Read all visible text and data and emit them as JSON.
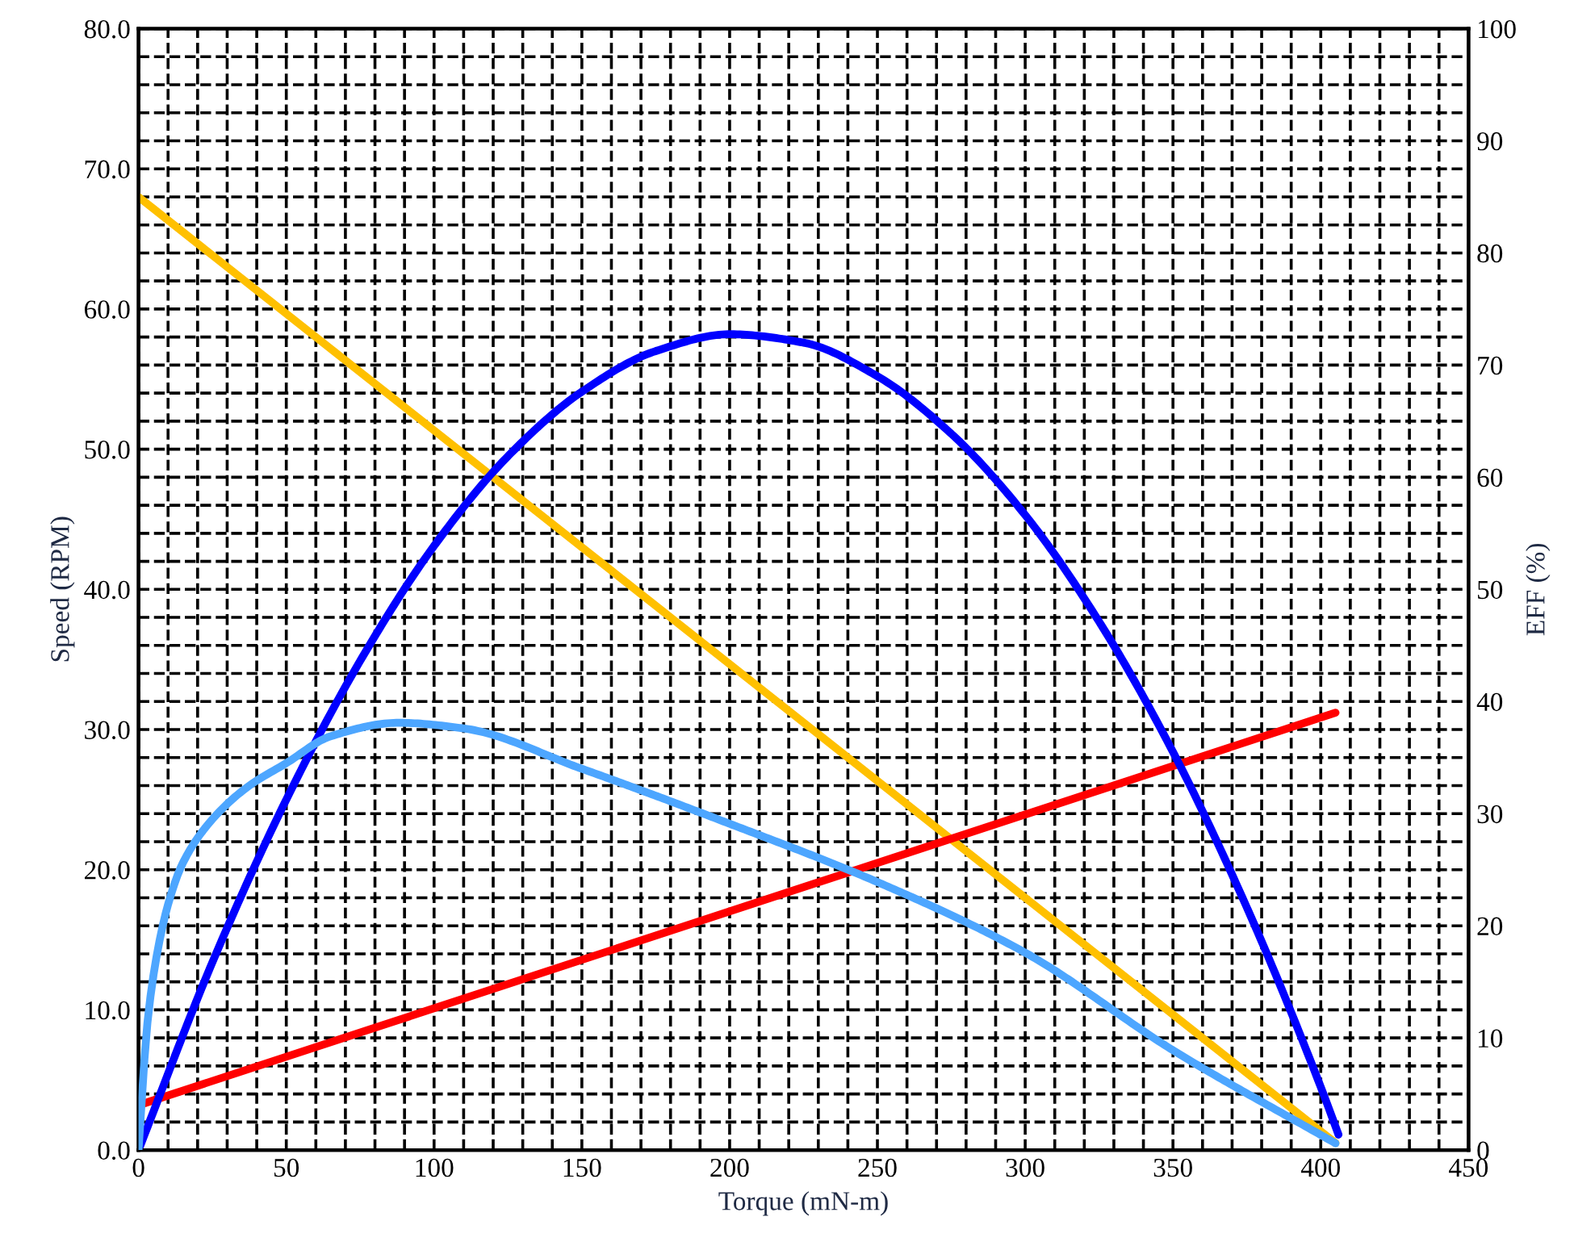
{
  "chart_data": {
    "type": "line",
    "xlabel": "Torque (mN-m)",
    "ylabel": "Speed (RPM)",
    "y2label": "EFF (%)",
    "xlim": [
      0,
      450
    ],
    "xticks": [
      0,
      50,
      100,
      150,
      200,
      250,
      300,
      350,
      400,
      450
    ],
    "ylim": [
      0,
      80
    ],
    "yticks": [
      {
        "value": 0,
        "label": "0.0"
      },
      {
        "value": 10,
        "label": "10.0"
      },
      {
        "value": 20,
        "label": "20.0"
      },
      {
        "value": 30,
        "label": "30.0"
      },
      {
        "value": 40,
        "label": "40.0"
      },
      {
        "value": 50,
        "label": "50.0"
      },
      {
        "value": 60,
        "label": "60.0"
      },
      {
        "value": 70,
        "label": "70.0"
      },
      {
        "value": 80,
        "label": "80.0"
      }
    ],
    "y2lim": [
      0,
      100
    ],
    "y2ticks": [
      0,
      10,
      20,
      30,
      40,
      50,
      60,
      70,
      80,
      90,
      100
    ],
    "grid": true,
    "marker": "none",
    "series": [
      {
        "color": "#ffc000",
        "x": [
          0,
          405
        ],
        "values": [
          68,
          0.5
        ]
      },
      {
        "color": "#ff0000",
        "x": [
          0,
          405
        ],
        "values": [
          3.2,
          31.2
        ]
      },
      {
        "color": "#0000ff",
        "x": [
          0,
          25,
          50,
          75,
          100,
          125,
          150,
          175,
          200,
          225,
          250,
          275,
          300,
          325,
          350,
          375,
          400,
          406
        ],
        "values": [
          0,
          13.4,
          25.0,
          34.9,
          43.1,
          49.5,
          54.1,
          57.0,
          58.2,
          57.6,
          55.2,
          51.1,
          45.3,
          37.7,
          28.4,
          17.3,
          4.5,
          1.1
        ]
      },
      {
        "color": "#4da6ff",
        "axis": "y2",
        "x": [
          0,
          3,
          6,
          10,
          15,
          25,
          37,
          50,
          65,
          88,
          110,
          150,
          200,
          250,
          300,
          350,
          405
        ],
        "values": [
          0,
          11.3,
          17.1,
          21.9,
          25.6,
          29.5,
          32.4,
          34.5,
          36.9,
          38.1,
          37.6,
          34,
          29.1,
          23.9,
          17.6,
          8.9,
          0.6
        ]
      }
    ]
  }
}
